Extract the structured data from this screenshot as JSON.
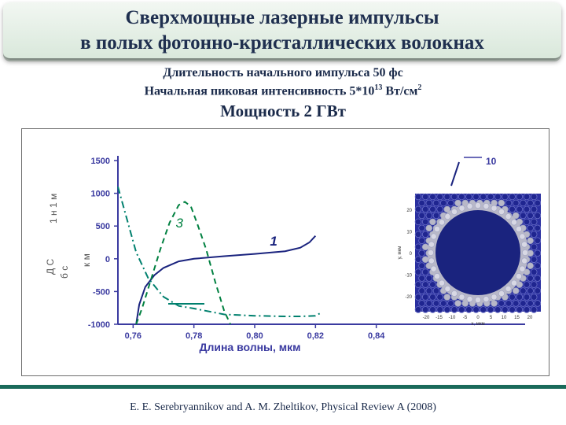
{
  "title": {
    "line1": "Сверхмощные лазерные импульсы",
    "line2": "в полых фотонно-кристаллических волокнах"
  },
  "params": {
    "duration": "Длительность начального импульса  50 фс",
    "intensity_prefix": "Начальная пиковая интенсивность  5*10",
    "intensity_exp": "13",
    "intensity_suffix": " Вт/см",
    "intensity_unit_exp": "2",
    "power": "Мощность  2 ГВт"
  },
  "citation": "E. E. Serebryannikov and A. M. Zheltikov, Physical Review A (2008)",
  "colors": {
    "title_bg": "#dce9de",
    "curve1": "#1a237e",
    "curve2": "#008040",
    "curve3": "#00806e",
    "axis": "#3a3aa0",
    "fiber_hole": "#1a237e",
    "fiber_ring": "#b8b8c8"
  },
  "chart_data": {
    "type": "line",
    "xlabel": "Длина волны, мкм",
    "ylabel_fragments": [
      "1 н 1 м",
      "Д С",
      "б с",
      "к м"
    ],
    "x_ticks": [
      "0,76",
      "0,78",
      "0,80",
      "0,82",
      "0,84"
    ],
    "y_ticks": [
      "1500",
      "1000",
      "500",
      "0",
      "-500",
      "-1000"
    ],
    "ylim": [
      -1000,
      1500
    ],
    "xlim": [
      0.755,
      0.845
    ],
    "curve_labels": [
      "1",
      "3",
      "10"
    ],
    "series": [
      {
        "name": "1",
        "style": "solid",
        "x": [
          0.761,
          0.762,
          0.764,
          0.767,
          0.77,
          0.775,
          0.78,
          0.79,
          0.8,
          0.81,
          0.815,
          0.818,
          0.82
        ],
        "y": [
          -1000,
          -700,
          -430,
          -250,
          -140,
          -40,
          0,
          40,
          75,
          115,
          170,
          250,
          350
        ]
      },
      {
        "name": "3",
        "style": "dashed",
        "x": [
          0.761,
          0.763,
          0.766,
          0.769,
          0.772,
          0.775,
          0.777,
          0.779,
          0.781,
          0.784,
          0.787,
          0.79,
          0.792
        ],
        "y": [
          -1000,
          -750,
          -300,
          150,
          550,
          820,
          870,
          800,
          550,
          150,
          -350,
          -800,
          -1000
        ]
      },
      {
        "name": "",
        "style": "dash-dot",
        "x": [
          0.755,
          0.758,
          0.761,
          0.765,
          0.77,
          0.775,
          0.78,
          0.79,
          0.8,
          0.81,
          0.815,
          0.82,
          0.822
        ],
        "y": [
          1100,
          600,
          100,
          -300,
          -580,
          -720,
          -760,
          -850,
          -870,
          -880,
          -880,
          -870,
          -820
        ]
      }
    ],
    "inset": {
      "type": "heatmap",
      "description_free": true,
      "x_ticks": [
        "-20",
        "-15",
        "-10",
        "-5",
        "0",
        "5",
        "10",
        "15",
        "20"
      ],
      "y_ticks": [
        "20",
        "10",
        "0",
        "-10",
        "-20"
      ],
      "xlabel": "x, мкм",
      "ylabel": "y, мкм"
    }
  }
}
